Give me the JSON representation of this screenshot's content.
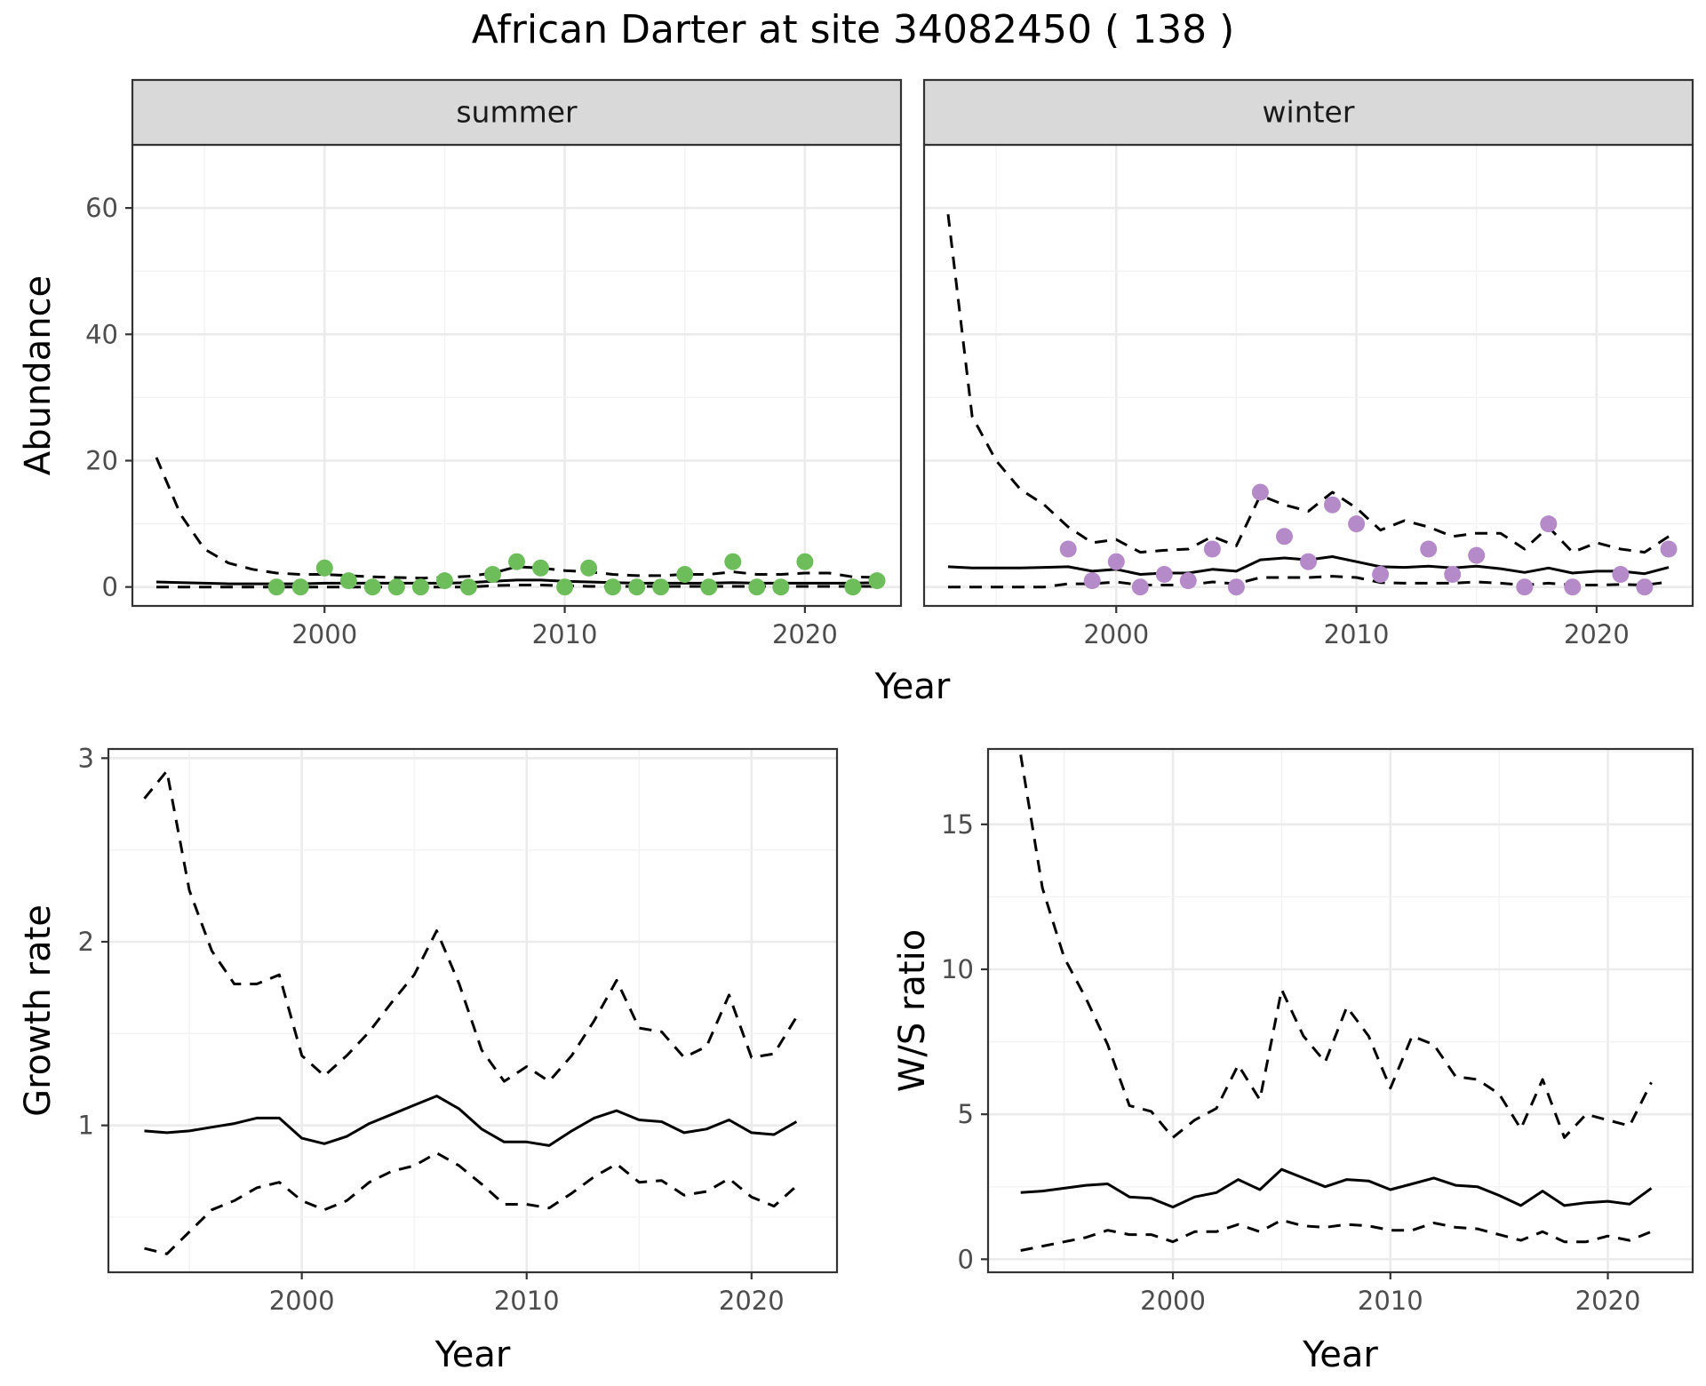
{
  "figure": {
    "title": "African Darter at site 34082450 ( 138 )"
  },
  "chart_data": [
    {
      "type": "line",
      "panel": "summer",
      "strip_label": "summer",
      "xlabel": "Year",
      "ylabel": "Abundance",
      "xlim": [
        1992,
        2024
      ],
      "ylim": [
        -3,
        70
      ],
      "xticks": [
        2000,
        2010,
        2020
      ],
      "yticks": [
        0,
        20,
        40,
        60
      ],
      "point_color": "#6dbe5a",
      "x": [
        1993,
        1994,
        1995,
        1996,
        1997,
        1998,
        1999,
        2000,
        2001,
        2002,
        2003,
        2004,
        2005,
        2006,
        2007,
        2008,
        2009,
        2010,
        2011,
        2012,
        2013,
        2014,
        2015,
        2016,
        2017,
        2018,
        2019,
        2020,
        2021,
        2022,
        2023
      ],
      "series": [
        {
          "style": "mean",
          "values": [
            0.8,
            0.7,
            0.6,
            0.5,
            0.5,
            0.5,
            0.5,
            0.6,
            0.6,
            0.6,
            0.6,
            0.6,
            0.6,
            0.7,
            0.9,
            1.1,
            1.1,
            0.9,
            0.8,
            0.7,
            0.6,
            0.6,
            0.6,
            0.6,
            0.7,
            0.6,
            0.6,
            0.6,
            0.6,
            0.6,
            0.7
          ]
        },
        {
          "style": "upper",
          "values": [
            20.5,
            11.5,
            6,
            3.8,
            2.8,
            2.2,
            2.0,
            2.0,
            1.8,
            1.6,
            1.5,
            1.4,
            1.5,
            1.7,
            2.2,
            3.2,
            3.0,
            2.6,
            2.4,
            2.0,
            1.8,
            1.8,
            2.0,
            2.0,
            2.4,
            2.0,
            2.0,
            2.2,
            2.2,
            1.6,
            1.5
          ]
        },
        {
          "style": "lower",
          "values": [
            0,
            0,
            0,
            0,
            0,
            0,
            0,
            0,
            0,
            0,
            0,
            0,
            0,
            0,
            0.2,
            0.3,
            0.3,
            0.2,
            0.1,
            0.1,
            0.1,
            0.1,
            0.1,
            0.1,
            0.1,
            0.1,
            0.1,
            0.1,
            0.1,
            0.1,
            0.1
          ]
        }
      ],
      "points": {
        "x": [
          1998,
          1999,
          2000,
          2001,
          2002,
          2003,
          2004,
          2005,
          2006,
          2007,
          2008,
          2009,
          2010,
          2011,
          2012,
          2013,
          2014,
          2015,
          2016,
          2017,
          2018,
          2019,
          2020,
          2022,
          2023
        ],
        "y": [
          0,
          0,
          3,
          1,
          0,
          0,
          0,
          1,
          0,
          2,
          4,
          3,
          0,
          3,
          0,
          0,
          0,
          2,
          0,
          4,
          0,
          0,
          4,
          0,
          1
        ]
      }
    },
    {
      "type": "line",
      "panel": "winter",
      "strip_label": "winter",
      "xlabel": "Year",
      "ylabel": "",
      "xlim": [
        1992,
        2024
      ],
      "ylim": [
        -3,
        70
      ],
      "xticks": [
        2000,
        2010,
        2020
      ],
      "yticks": [
        0,
        20,
        40,
        60
      ],
      "point_color": "#b48ac8",
      "x": [
        1993,
        1994,
        1995,
        1996,
        1997,
        1998,
        1999,
        2000,
        2001,
        2002,
        2003,
        2004,
        2005,
        2006,
        2007,
        2008,
        2009,
        2010,
        2011,
        2012,
        2013,
        2014,
        2015,
        2016,
        2017,
        2018,
        2019,
        2020,
        2021,
        2022,
        2023
      ],
      "series": [
        {
          "style": "mean",
          "values": [
            3.2,
            3.0,
            3.0,
            3.0,
            3.1,
            3.2,
            2.5,
            2.8,
            2.0,
            2.2,
            2.2,
            2.8,
            2.5,
            4.3,
            4.6,
            4.3,
            4.8,
            4.0,
            3.2,
            3.1,
            3.3,
            3.0,
            3.3,
            2.9,
            2.3,
            3.0,
            2.2,
            2.5,
            2.5,
            2.1,
            3.1
          ]
        },
        {
          "style": "upper",
          "values": [
            59,
            27,
            20,
            15.5,
            13,
            9.5,
            7,
            7.5,
            5.5,
            5.8,
            6,
            8,
            6.5,
            14.5,
            13,
            12,
            15,
            12.5,
            9,
            10.5,
            9.5,
            8,
            8.5,
            8.5,
            6,
            9.5,
            5.5,
            7,
            6,
            5.5,
            8
          ]
        },
        {
          "style": "lower",
          "values": [
            0,
            0,
            0,
            0,
            0,
            0.5,
            0.5,
            0.8,
            0.3,
            0.3,
            0.3,
            0.8,
            0.5,
            1.5,
            1.5,
            1.5,
            1.7,
            1.5,
            0.7,
            0.6,
            0.6,
            0.6,
            0.8,
            0.6,
            0.3,
            0.6,
            0.3,
            0.3,
            0.4,
            0.3,
            0.8
          ]
        }
      ],
      "points": {
        "x": [
          1998,
          1999,
          2000,
          2001,
          2002,
          2003,
          2004,
          2005,
          2006,
          2007,
          2008,
          2009,
          2010,
          2011,
          2013,
          2014,
          2015,
          2017,
          2018,
          2019,
          2021,
          2022,
          2023
        ],
        "y": [
          6,
          1,
          4,
          0,
          2,
          1,
          6,
          0,
          15,
          8,
          4,
          13,
          10,
          2,
          6,
          2,
          5,
          0,
          10,
          0,
          2,
          0,
          6
        ]
      }
    },
    {
      "type": "line",
      "panel": "growth",
      "xlabel": "Year",
      "ylabel": "Growth rate",
      "xlim": [
        1991.4,
        2023.8
      ],
      "ylim": [
        0.2,
        3.05
      ],
      "xticks": [
        2000,
        2010,
        2020
      ],
      "yticks": [
        1,
        2,
        3
      ],
      "x": [
        1993,
        1994,
        1995,
        1996,
        1997,
        1998,
        1999,
        2000,
        2001,
        2002,
        2003,
        2004,
        2005,
        2006,
        2007,
        2008,
        2009,
        2010,
        2011,
        2012,
        2013,
        2014,
        2015,
        2016,
        2017,
        2018,
        2019,
        2020,
        2021,
        2022
      ],
      "series": [
        {
          "style": "mean",
          "values": [
            0.97,
            0.96,
            0.97,
            0.99,
            1.01,
            1.04,
            1.04,
            0.93,
            0.9,
            0.94,
            1.01,
            1.06,
            1.11,
            1.16,
            1.09,
            0.98,
            0.91,
            0.91,
            0.89,
            0.97,
            1.04,
            1.08,
            1.03,
            1.02,
            0.96,
            0.98,
            1.03,
            0.96,
            0.95,
            1.02
          ]
        },
        {
          "style": "upper",
          "values": [
            2.78,
            2.93,
            2.28,
            1.95,
            1.77,
            1.77,
            1.82,
            1.38,
            1.27,
            1.38,
            1.51,
            1.67,
            1.82,
            2.06,
            1.77,
            1.41,
            1.24,
            1.32,
            1.24,
            1.38,
            1.57,
            1.79,
            1.53,
            1.51,
            1.37,
            1.43,
            1.71,
            1.37,
            1.39,
            1.59
          ]
        },
        {
          "style": "lower",
          "values": [
            0.33,
            0.3,
            0.42,
            0.54,
            0.59,
            0.66,
            0.69,
            0.59,
            0.54,
            0.59,
            0.69,
            0.75,
            0.78,
            0.85,
            0.78,
            0.68,
            0.57,
            0.57,
            0.55,
            0.63,
            0.72,
            0.79,
            0.69,
            0.7,
            0.62,
            0.64,
            0.71,
            0.61,
            0.56,
            0.67
          ]
        }
      ]
    },
    {
      "type": "line",
      "panel": "ws_ratio",
      "xlabel": "Year",
      "ylabel": "W/S ratio",
      "xlim": [
        1991.5,
        2023.9
      ],
      "ylim": [
        -0.45,
        17.6
      ],
      "xticks": [
        2000,
        2010,
        2020
      ],
      "yticks": [
        0,
        5,
        10,
        15
      ],
      "x": [
        1993,
        1994,
        1995,
        1996,
        1997,
        1998,
        1999,
        2000,
        2001,
        2002,
        2003,
        2004,
        2005,
        2006,
        2007,
        2008,
        2009,
        2010,
        2011,
        2012,
        2013,
        2014,
        2015,
        2016,
        2017,
        2018,
        2019,
        2020,
        2021,
        2022
      ],
      "series": [
        {
          "style": "mean",
          "values": [
            2.3,
            2.35,
            2.45,
            2.55,
            2.6,
            2.15,
            2.1,
            1.8,
            2.15,
            2.3,
            2.75,
            2.4,
            3.1,
            2.8,
            2.5,
            2.75,
            2.7,
            2.4,
            2.6,
            2.8,
            2.55,
            2.5,
            2.2,
            1.85,
            2.35,
            1.85,
            1.95,
            2.0,
            1.9,
            2.45
          ]
        },
        {
          "style": "upper",
          "values": [
            17.4,
            12.8,
            10.4,
            9.0,
            7.4,
            5.3,
            5.1,
            4.2,
            4.8,
            5.2,
            6.7,
            5.5,
            9.3,
            7.7,
            6.8,
            8.7,
            7.7,
            5.9,
            7.7,
            7.4,
            6.3,
            6.2,
            5.7,
            4.5,
            6.2,
            4.2,
            5.0,
            4.8,
            4.6,
            6.1
          ]
        },
        {
          "style": "lower",
          "values": [
            0.3,
            0.45,
            0.6,
            0.75,
            1.0,
            0.85,
            0.85,
            0.6,
            0.95,
            0.95,
            1.2,
            0.95,
            1.35,
            1.15,
            1.1,
            1.2,
            1.15,
            1.0,
            1.0,
            1.25,
            1.1,
            1.05,
            0.85,
            0.65,
            0.95,
            0.6,
            0.6,
            0.8,
            0.65,
            0.95
          ]
        }
      ]
    }
  ]
}
